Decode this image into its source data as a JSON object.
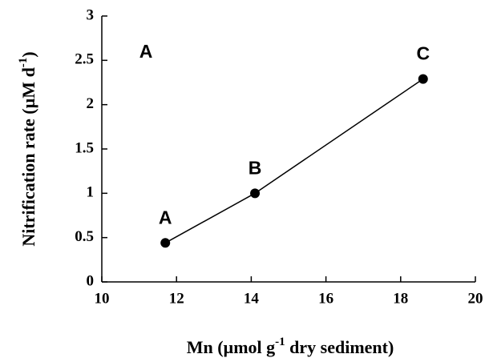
{
  "chart_data": {
    "type": "line",
    "panel_label": "A",
    "xlabel": [
      "Mn (µmol g",
      "-1",
      " dry sediment)"
    ],
    "ylabel": [
      "Nitrification rate (µM d",
      "-1",
      ")"
    ],
    "x": [
      11.7,
      14.1,
      18.6
    ],
    "series": [
      {
        "color": "#000000",
        "values": [
          0.44,
          1.0,
          2.29
        ],
        "point_labels": [
          "A",
          "B",
          "C"
        ]
      }
    ],
    "xlim": [
      10,
      20
    ],
    "xticks": [
      10,
      12,
      14,
      16,
      18,
      20
    ],
    "ylim": [
      0,
      3
    ],
    "yticks": [
      0,
      0.5,
      1,
      1.5,
      2,
      2.5,
      3
    ],
    "grid": false
  }
}
